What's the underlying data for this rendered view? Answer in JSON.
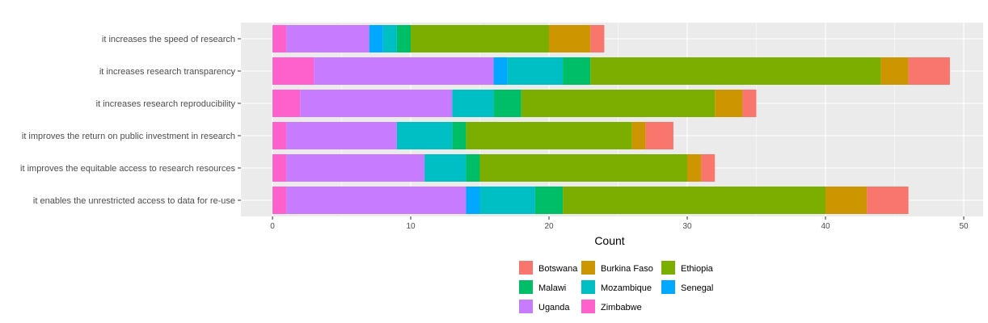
{
  "chart_data": {
    "type": "bar",
    "orientation": "horizontal",
    "stacked": true,
    "title": "",
    "xlabel": "Count",
    "ylabel": "",
    "xlim": [
      0,
      52
    ],
    "xticks": [
      0,
      10,
      20,
      30,
      40,
      50
    ],
    "grid": true,
    "legend_position": "bottom",
    "categories": [
      "it increases the speed of research",
      "it increases research transparency",
      "it increases research reproducibility",
      "it improves the return on public investment in research",
      "it improves the equitable access to research resources",
      "it enables the unrestricted access to data for re-use"
    ],
    "stack_order": [
      "Zimbabwe",
      "Uganda",
      "Senegal",
      "Mozambique",
      "Malawi",
      "Ethiopia",
      "Burkina Faso",
      "Botswana"
    ],
    "series": [
      {
        "name": "Botswana",
        "color": "#F8766D",
        "values": [
          1,
          3,
          1,
          2,
          1,
          3
        ]
      },
      {
        "name": "Burkina Faso",
        "color": "#CD9600",
        "values": [
          3,
          2,
          2,
          1,
          1,
          3
        ]
      },
      {
        "name": "Ethiopia",
        "color": "#7CAE00",
        "values": [
          10,
          21,
          14,
          12,
          15,
          19
        ]
      },
      {
        "name": "Malawi",
        "color": "#00BE67",
        "values": [
          1,
          2,
          2,
          1,
          1,
          2
        ]
      },
      {
        "name": "Mozambique",
        "color": "#00BFC4",
        "values": [
          1,
          4,
          3,
          4,
          3,
          4
        ]
      },
      {
        "name": "Senegal",
        "color": "#00A9FF",
        "values": [
          1,
          1,
          0,
          0,
          0,
          1
        ]
      },
      {
        "name": "Uganda",
        "color": "#C77CFF",
        "values": [
          6,
          13,
          11,
          8,
          10,
          13
        ]
      },
      {
        "name": "Zimbabwe",
        "color": "#FF61CC",
        "values": [
          1,
          3,
          2,
          1,
          1,
          1
        ]
      }
    ],
    "legend_rows": [
      [
        "Botswana",
        "Burkina Faso",
        "Ethiopia"
      ],
      [
        "Malawi",
        "Mozambique",
        "Senegal"
      ],
      [
        "Uganda",
        "Zimbabwe"
      ]
    ],
    "panel_background": "#EBEBEB",
    "grid_color": "#FFFFFF"
  }
}
